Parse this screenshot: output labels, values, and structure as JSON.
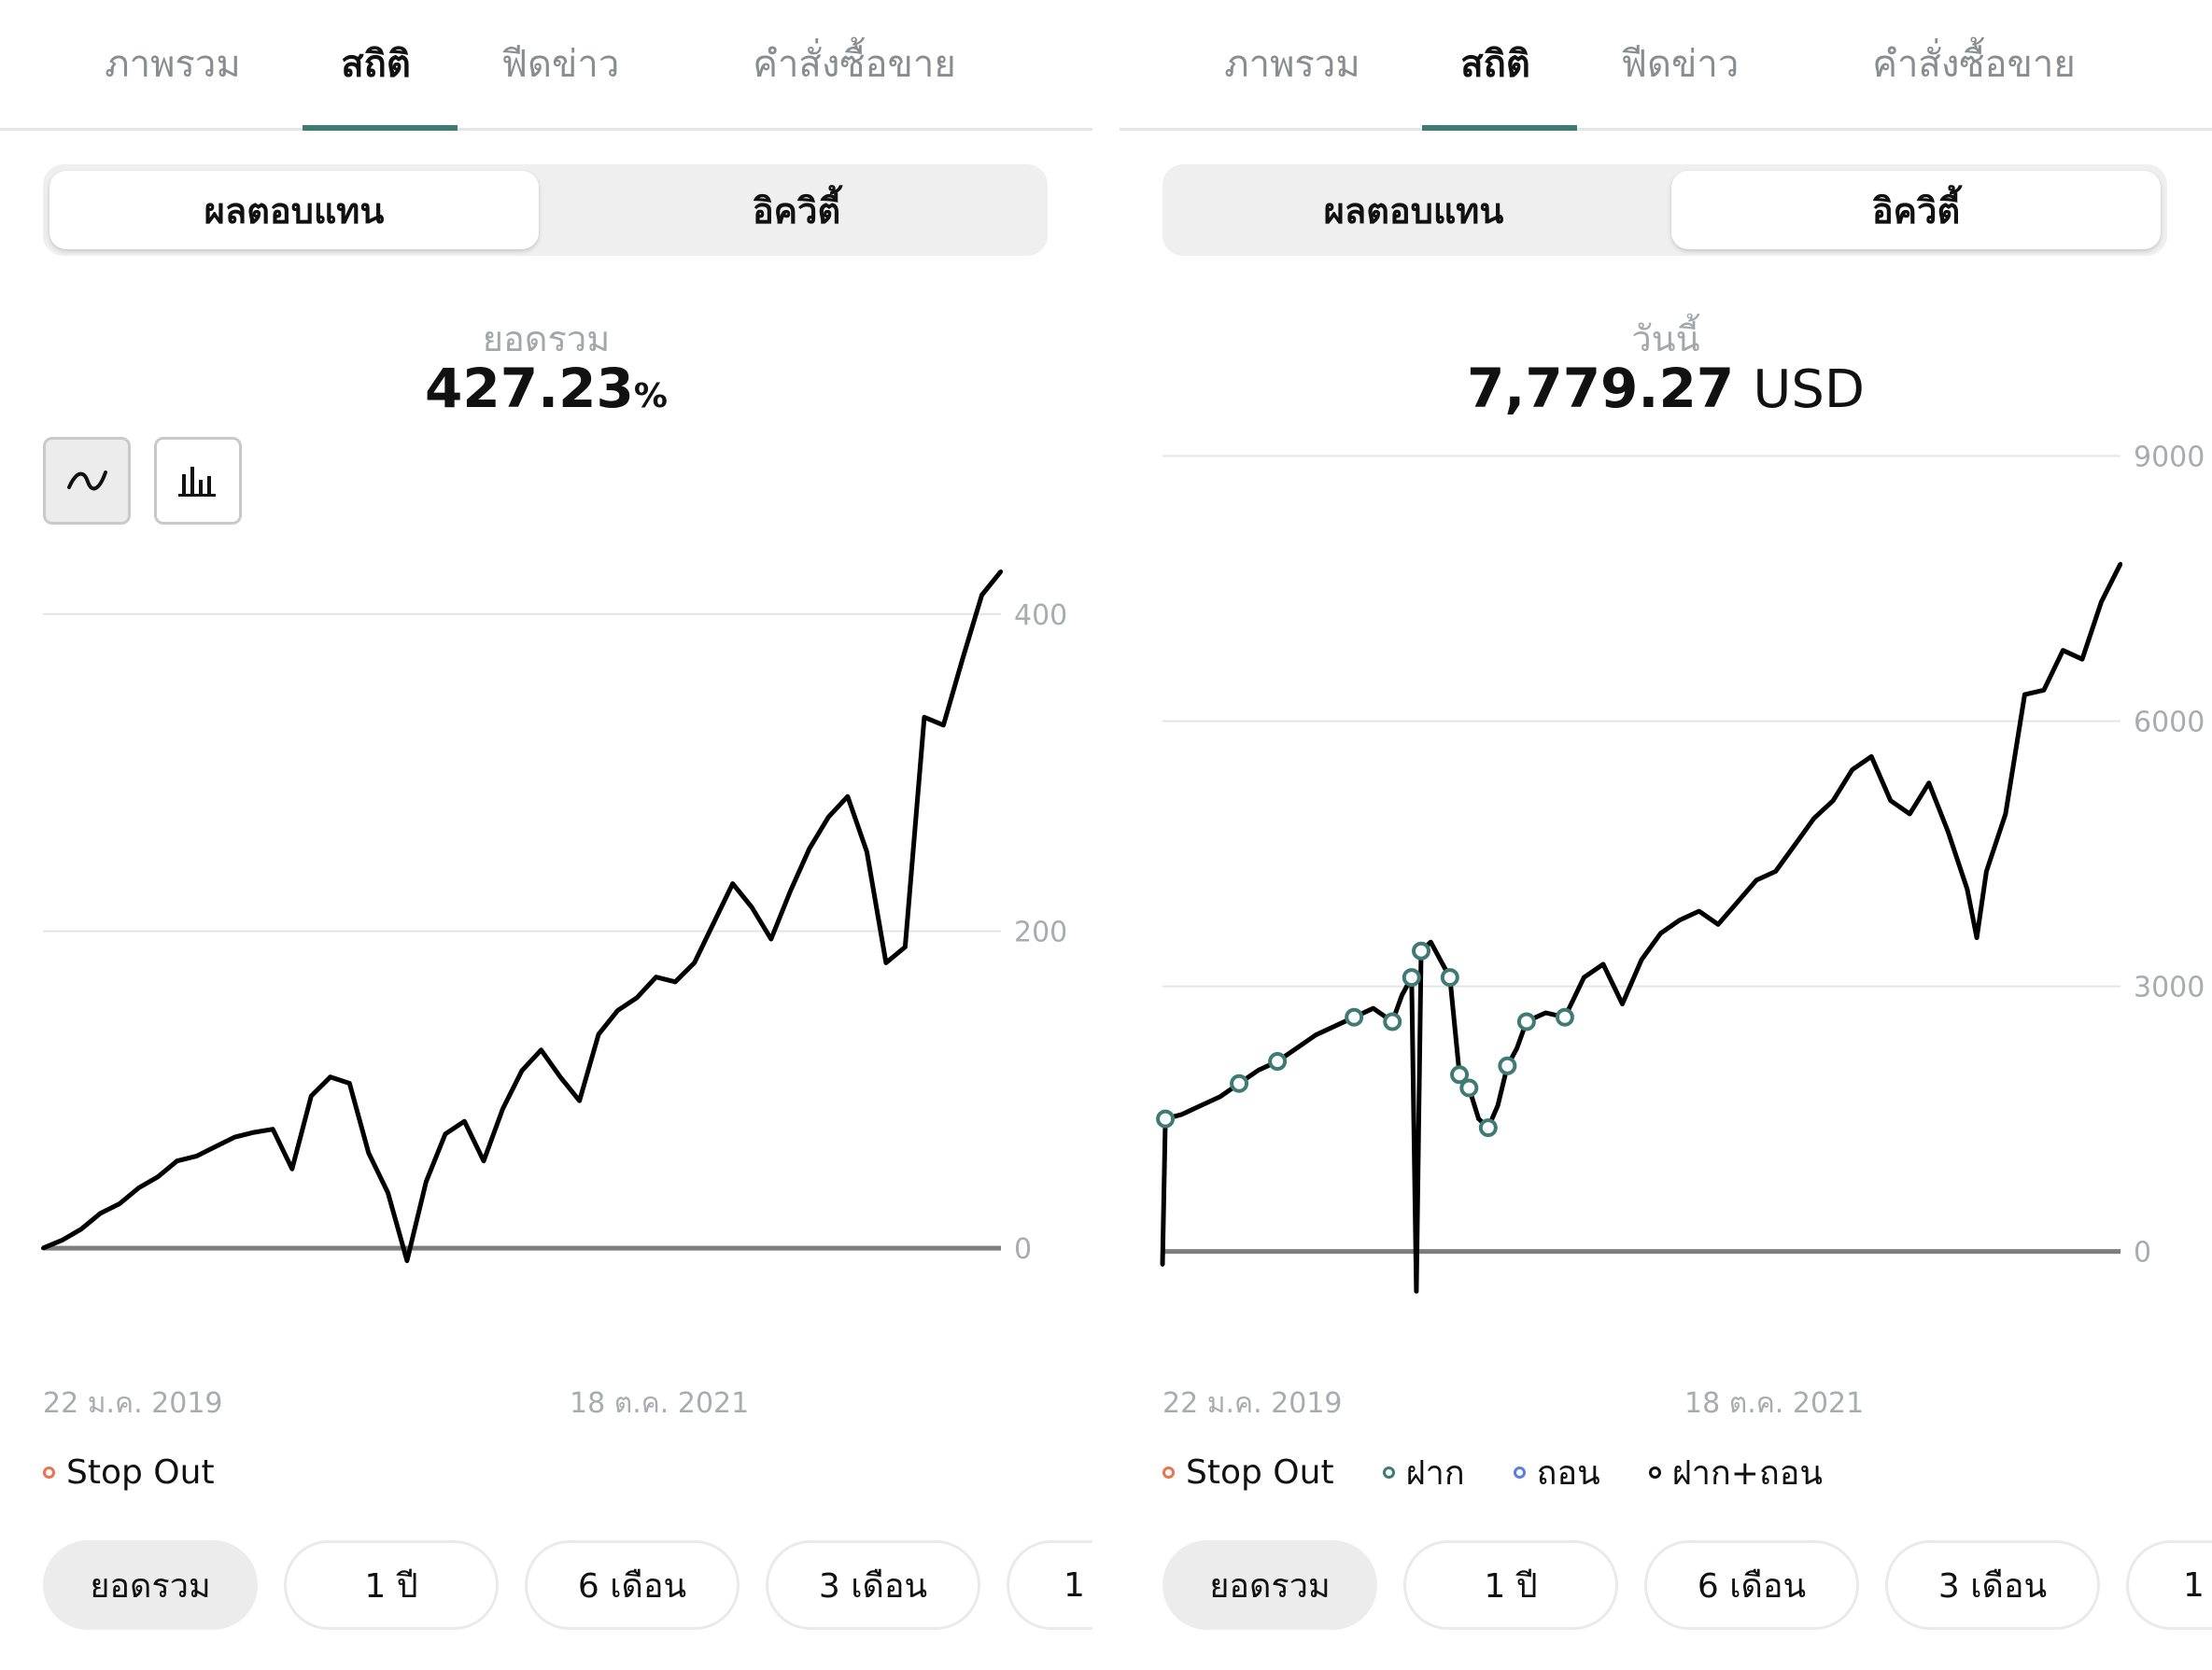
{
  "tabs": [
    "ภาพรวม",
    "สถิติ",
    "ฟีดข่าว",
    "คำสั่งซื้อขาย"
  ],
  "segment": [
    "ผลตอบแทน",
    "อิควิตี้"
  ],
  "periods": [
    "ยอดรวม",
    "1 ปี",
    "6 เดือน",
    "3 เดือน",
    "1"
  ],
  "colors": {
    "accent": "#3f7a74",
    "stop_out": "#e8734f",
    "deposit": "#3f7a74",
    "withdraw": "#5b7fe0",
    "deposit_withdraw": "#111111"
  },
  "icons": {
    "line_toggle": "line-chart-icon",
    "bar_toggle": "bar-chart-icon"
  },
  "left": {
    "summary_label": "ยอดรวม",
    "summary_value": "427.23",
    "summary_unit": "%",
    "legend": [
      {
        "label": "Stop Out",
        "color": "#e8734f"
      }
    ]
  },
  "right": {
    "summary_label": "วันนี้",
    "summary_value": "7,779.27",
    "summary_unit": "USD",
    "legend": [
      {
        "label": "Stop Out",
        "color": "#e8734f"
      },
      {
        "label": "ฝาก",
        "color": "#3f7a74"
      },
      {
        "label": "ถอน",
        "color": "#5b7fe0"
      },
      {
        "label": "ฝาก+ถอน",
        "color": "#111111"
      }
    ]
  },
  "chart_data": [
    {
      "type": "line",
      "title": "",
      "x_tick_labels": [
        "22 ม.ค. 2019",
        "18 ต.ค. 2021"
      ],
      "y_tick_labels": [
        "0",
        "200",
        "400"
      ],
      "ylim": [
        -30,
        440
      ],
      "grid": true,
      "y_axis_position": "right",
      "legend_position": "bottom-left",
      "series": [
        {
          "x": [
            0,
            2,
            4,
            6,
            8,
            10,
            12,
            14,
            16,
            18,
            20,
            22,
            24,
            26,
            28,
            30,
            32,
            34,
            36,
            38,
            40,
            42,
            44,
            46,
            48,
            50,
            52,
            54,
            56,
            58,
            60,
            62,
            64,
            66,
            68,
            70,
            72,
            74,
            76,
            78,
            80,
            82,
            84,
            86,
            88,
            90,
            92,
            94,
            96,
            98,
            100
          ],
          "values": [
            0,
            5,
            12,
            22,
            28,
            38,
            45,
            55,
            58,
            64,
            70,
            73,
            75,
            50,
            96,
            108,
            104,
            60,
            35,
            -8,
            42,
            72,
            80,
            55,
            88,
            112,
            125,
            108,
            93,
            135,
            150,
            158,
            171,
            168,
            180,
            205,
            230,
            215,
            195,
            225,
            252,
            272,
            285,
            250,
            180,
            190,
            335,
            330,
            372,
            412,
            427
          ]
        }
      ]
    },
    {
      "type": "line",
      "title": "",
      "x_tick_labels": [
        "22 ม.ค. 2019",
        "18 ต.ค. 2021"
      ],
      "y_tick_labels": [
        "0",
        "3000",
        "6000",
        "9000"
      ],
      "ylim": [
        -500,
        9300
      ],
      "grid": true,
      "y_axis_position": "right",
      "legend_position": "bottom-left",
      "series": [
        {
          "x": [
            0,
            0.3,
            2,
            4,
            6,
            8,
            10,
            12,
            14,
            16,
            18,
            20,
            22,
            24,
            25,
            26,
            26.5,
            27,
            28,
            29,
            30,
            31,
            32,
            33,
            34,
            35,
            36,
            37,
            38,
            40,
            42,
            44,
            46,
            48,
            50,
            52,
            54,
            56,
            58,
            60,
            62,
            64,
            66,
            68,
            70,
            72,
            74,
            76,
            78,
            80,
            82,
            84,
            85,
            86,
            88,
            90,
            92,
            94,
            96,
            98,
            100
          ],
          "values": [
            -150,
            1500,
            1550,
            1650,
            1750,
            1900,
            2050,
            2150,
            2300,
            2450,
            2550,
            2650,
            2750,
            2600,
            2900,
            3100,
            -450,
            3400,
            3500,
            3300,
            3100,
            2000,
            1850,
            1500,
            1400,
            1650,
            2100,
            2300,
            2600,
            2700,
            2650,
            3100,
            3250,
            2800,
            3300,
            3600,
            3750,
            3850,
            3700,
            3950,
            4200,
            4300,
            4600,
            4900,
            5100,
            5450,
            5600,
            5100,
            4950,
            5300,
            4750,
            4100,
            3550,
            4300,
            4950,
            6300,
            6350,
            6800,
            6700,
            7350,
            7779
          ]
        }
      ]
    }
  ]
}
